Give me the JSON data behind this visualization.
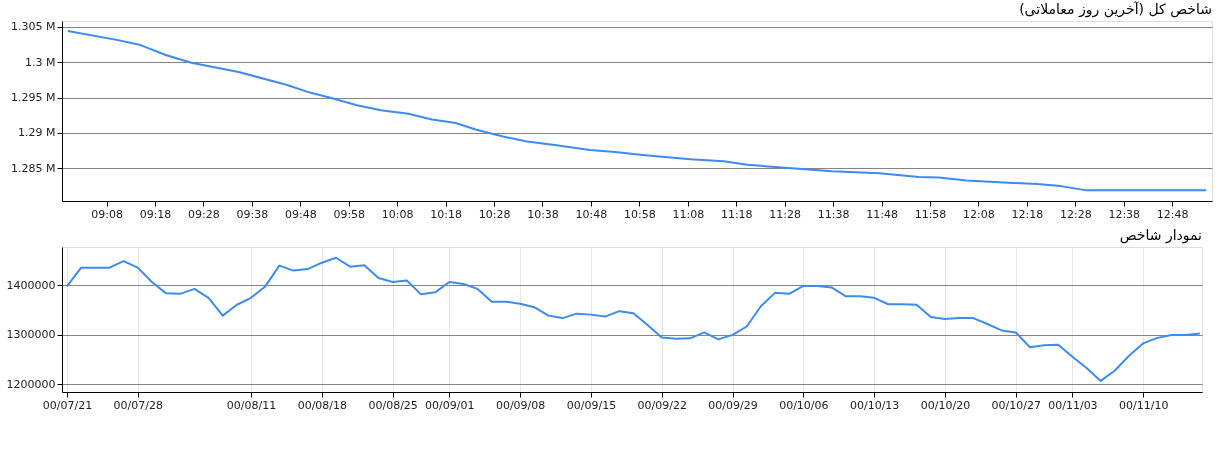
{
  "chart_data": [
    {
      "type": "line",
      "title": "شاخص کل (آخرین روز معاملاتی)",
      "grid": "y",
      "legend": false,
      "marker": "none",
      "line_style": "solid",
      "x": [
        9.0,
        9.173,
        9.25,
        9.337,
        9.425,
        9.588,
        9.752,
        9.833,
        9.9,
        9.995,
        10.077,
        10.172,
        10.253,
        10.335,
        10.403,
        10.498,
        10.58,
        10.675,
        10.797,
        10.883,
        10.978,
        11.142,
        11.257,
        11.338,
        11.467,
        11.63,
        11.793,
        11.928,
        11.997,
        12.092,
        12.173,
        12.335,
        12.417,
        12.505,
        12.917
      ],
      "series": [
        {
          "color": "#3d8bef",
          "values": [
            1304400,
            1303100,
            1302400,
            1301000,
            1299900,
            1298600,
            1296800,
            1295700,
            1295000,
            1293900,
            1293200,
            1292700,
            1291900,
            1291400,
            1290500,
            1289500,
            1288800,
            1288300,
            1287600,
            1287300,
            1286900,
            1286300,
            1286000,
            1285500,
            1285100,
            1284600,
            1284300,
            1283800,
            1283700,
            1283300,
            1283100,
            1282800,
            1282500,
            1281900,
            1281900
          ]
        }
      ],
      "xlim": [
        8.98,
        12.937
      ],
      "xticks": [
        {
          "value": 9.1333,
          "label": "09:08"
        },
        {
          "value": 9.3,
          "label": "09:18"
        },
        {
          "value": 9.4667,
          "label": "09:28"
        },
        {
          "value": 9.6333,
          "label": "09:38"
        },
        {
          "value": 9.8,
          "label": "09:48"
        },
        {
          "value": 9.9667,
          "label": "09:58"
        },
        {
          "value": 10.1333,
          "label": "10:08"
        },
        {
          "value": 10.3,
          "label": "10:18"
        },
        {
          "value": 10.4667,
          "label": "10:28"
        },
        {
          "value": 10.6333,
          "label": "10:38"
        },
        {
          "value": 10.8,
          "label": "10:48"
        },
        {
          "value": 10.9667,
          "label": "10:58"
        },
        {
          "value": 11.1333,
          "label": "11:08"
        },
        {
          "value": 11.3,
          "label": "11:18"
        },
        {
          "value": 11.4667,
          "label": "11:28"
        },
        {
          "value": 11.6333,
          "label": "11:38"
        },
        {
          "value": 11.8,
          "label": "11:48"
        },
        {
          "value": 11.9667,
          "label": "11:58"
        },
        {
          "value": 12.1333,
          "label": "12:08"
        },
        {
          "value": 12.3,
          "label": "12:18"
        },
        {
          "value": 12.4667,
          "label": "12:28"
        },
        {
          "value": 12.6333,
          "label": "12:38"
        },
        {
          "value": 12.8,
          "label": "12:48"
        }
      ],
      "ylim": [
        1280400,
        1305800
      ],
      "yticks": [
        {
          "value": 1285000,
          "label": "1.285 M"
        },
        {
          "value": 1290000,
          "label": "1.29 M"
        },
        {
          "value": 1295000,
          "label": "1.295 M"
        },
        {
          "value": 1300000,
          "label": "1.3 M"
        },
        {
          "value": 1305000,
          "label": "1.305 M"
        }
      ]
    },
    {
      "type": "line",
      "title": "نمودار شاخص",
      "grid": true,
      "legend": false,
      "marker": "none",
      "line_style": "solid",
      "categories": [
        "00/07/21",
        null,
        null,
        null,
        null,
        "00/07/28",
        null,
        null,
        null,
        null,
        null,
        null,
        null,
        "00/08/11",
        null,
        null,
        null,
        null,
        "00/08/18",
        null,
        null,
        null,
        null,
        "00/08/25",
        null,
        null,
        null,
        "00/09/01",
        null,
        null,
        null,
        null,
        "00/09/08",
        null,
        null,
        null,
        null,
        "00/09/15",
        null,
        null,
        null,
        null,
        "00/09/22",
        null,
        null,
        null,
        null,
        "00/09/29",
        null,
        null,
        null,
        null,
        "00/10/06",
        null,
        null,
        null,
        null,
        "00/10/13",
        null,
        null,
        null,
        null,
        "00/10/20",
        null,
        null,
        null,
        null,
        "00/10/27",
        null,
        null,
        null,
        "00/11/03",
        null,
        null,
        null,
        null,
        "00/11/10",
        null,
        null,
        null,
        null
      ],
      "series": [
        {
          "color": "#3d8bef",
          "values": [
            1398000,
            1436000,
            1436000,
            1436000,
            1449000,
            1436000,
            1407000,
            1384000,
            1383000,
            1393000,
            1375000,
            1339000,
            1361000,
            1375000,
            1398000,
            1440000,
            1430000,
            1433000,
            1446000,
            1456000,
            1438000,
            1441000,
            1415000,
            1407000,
            1410000,
            1382000,
            1386000,
            1407000,
            1403000,
            1393000,
            1367000,
            1367000,
            1363000,
            1356000,
            1339000,
            1334000,
            1343000,
            1341000,
            1337000,
            1348000,
            1344000,
            1320000,
            1295000,
            1292000,
            1293000,
            1305000,
            1291000,
            1300000,
            1317000,
            1358000,
            1385000,
            1383000,
            1399000,
            1399000,
            1396000,
            1378000,
            1378000,
            1375000,
            1362000,
            1362000,
            1361000,
            1336000,
            1332000,
            1334000,
            1334000,
            1322000,
            1309000,
            1305000,
            1275000,
            1279000,
            1280000,
            1256000,
            1233000,
            1207000,
            1228000,
            1258000,
            1283000,
            1294000,
            1300000,
            1300000,
            1303000
          ]
        }
      ],
      "ylim": [
        1184600,
        1477700
      ],
      "yticks": [
        1200000,
        1300000,
        1400000
      ]
    }
  ]
}
